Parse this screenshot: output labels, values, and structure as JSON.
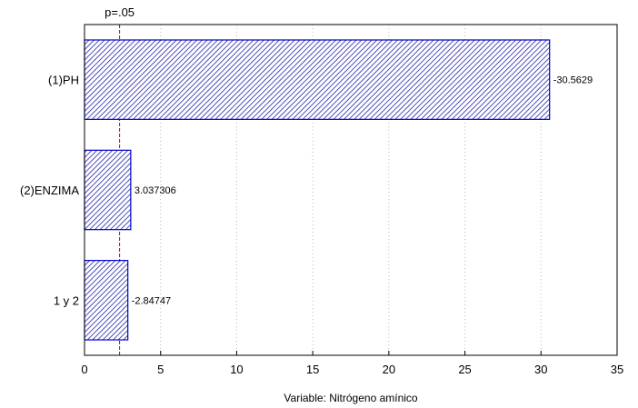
{
  "chart_data": {
    "type": "bar",
    "orientation": "horizontal",
    "categories": [
      "(1)PH",
      "(2)ENZIMA",
      "1 y 2"
    ],
    "values": [
      30.5629,
      3.037306,
      2.84747
    ],
    "value_labels": [
      "-30.5629",
      "3.037306",
      "-2.84747"
    ],
    "xlabel": "Variable: Nitrógeno amínico",
    "xlim": [
      0,
      35
    ],
    "xticks": [
      0,
      5,
      10,
      15,
      20,
      25,
      30,
      35
    ],
    "grid": true,
    "reference_line": {
      "value": 2.306,
      "label": "p=.05"
    },
    "colors": {
      "bar_stroke": "#0000cc",
      "bar_hatch": "#2222aa",
      "reference_line": "#cc0000",
      "grid": "#bbbbbb",
      "axis": "#000000"
    }
  }
}
